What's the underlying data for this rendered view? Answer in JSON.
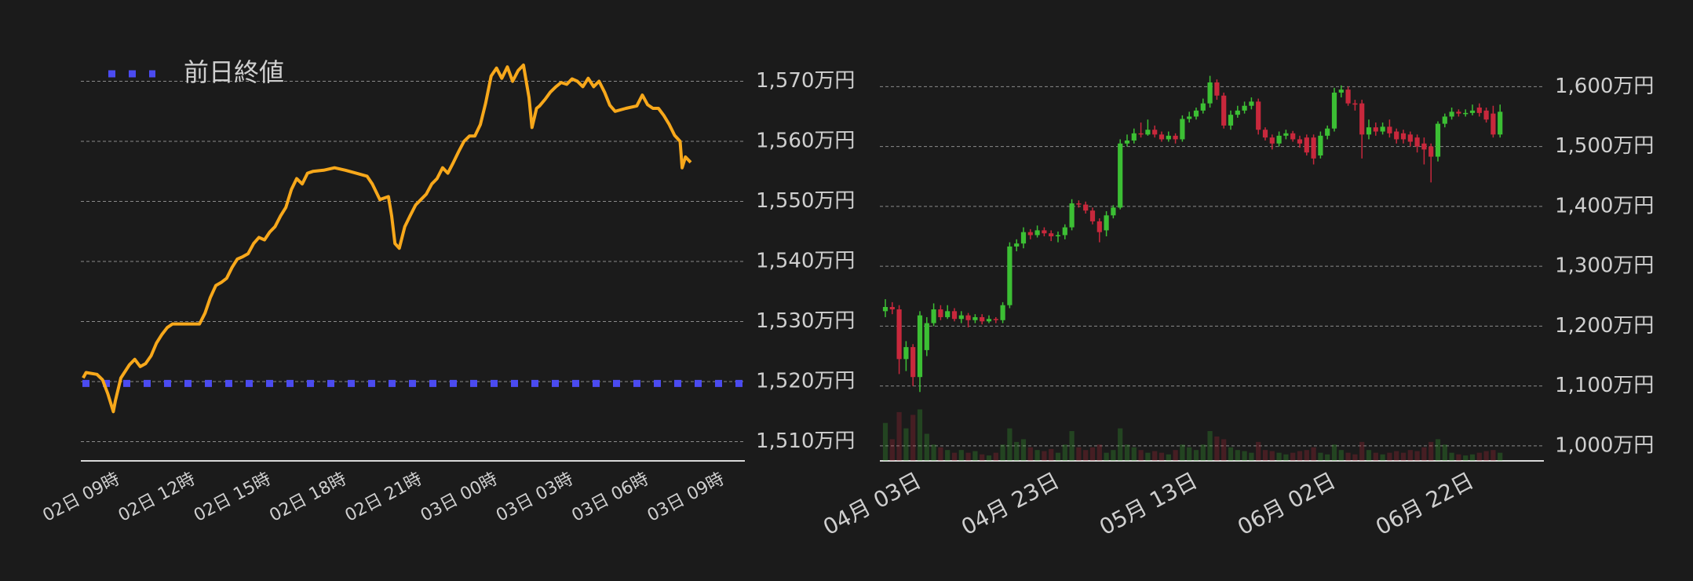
{
  "chart_data": [
    {
      "type": "line",
      "x": [
        7.59,
        7.71,
        8.14,
        8.36,
        8.57,
        8.79,
        8.87,
        9.09,
        9.43,
        9.64,
        9.86,
        10.07,
        10.29,
        10.5,
        10.71,
        10.93,
        11.14,
        12.21,
        12.43,
        12.64,
        12.86,
        13.07,
        13.29,
        13.5,
        13.71,
        13.93,
        14.14,
        14.36,
        14.57,
        14.79,
        15.0,
        15.21,
        15.43,
        15.64,
        15.86,
        16.07,
        16.29,
        16.5,
        16.71,
        17.14,
        17.57,
        18.0,
        18.43,
        18.86,
        19.07,
        19.37,
        19.71,
        19.84,
        19.97,
        20.14,
        20.36,
        20.57,
        20.79,
        21.0,
        21.21,
        21.43,
        21.64,
        21.86,
        22.07,
        22.29,
        22.5,
        22.71,
        22.93,
        23.14,
        23.36,
        23.57,
        23.79,
        24.0,
        24.21,
        24.43,
        24.64,
        24.86,
        25.07,
        25.29,
        25.41,
        25.59,
        25.71,
        25.93,
        26.14,
        26.36,
        26.57,
        26.79,
        27.0,
        27.21,
        27.43,
        27.64,
        27.86,
        28.07,
        28.29,
        28.5,
        28.71,
        29.14,
        29.57,
        29.79,
        30.0,
        30.21,
        30.43,
        30.64,
        30.86,
        31.07,
        31.29,
        31.37,
        31.5,
        31.71
      ],
      "values": [
        1520.6,
        1521.5,
        1521.2,
        1520.3,
        1518,
        1515,
        1516.8,
        1520.6,
        1522.8,
        1523.7,
        1522.5,
        1523,
        1524.3,
        1526.4,
        1527.8,
        1529,
        1529.6,
        1529.6,
        1531.4,
        1534,
        1536,
        1536.5,
        1537.2,
        1539,
        1540.4,
        1540.8,
        1541.3,
        1543,
        1544,
        1543.6,
        1544.9,
        1545.8,
        1547.6,
        1549,
        1552,
        1553.8,
        1552.9,
        1554.7,
        1555,
        1555.2,
        1555.6,
        1555.2,
        1554.7,
        1554.2,
        1552.9,
        1550.3,
        1550.8,
        1547.6,
        1543,
        1542.2,
        1545.8,
        1547.6,
        1549.4,
        1550.3,
        1551.2,
        1552.9,
        1553.8,
        1555.6,
        1554.7,
        1556.5,
        1558.3,
        1560,
        1560.9,
        1560.9,
        1562.8,
        1566.4,
        1570.9,
        1572.2,
        1570.5,
        1572.4,
        1570,
        1571.8,
        1572.7,
        1567.3,
        1562.3,
        1565.5,
        1565.9,
        1567,
        1568.2,
        1569.1,
        1569.8,
        1569.5,
        1570.4,
        1570,
        1569.1,
        1570.5,
        1569.1,
        1570,
        1568.2,
        1566,
        1565,
        1565.5,
        1565.9,
        1567.7,
        1566.1,
        1565.5,
        1565.5,
        1564.3,
        1562.8,
        1561,
        1560,
        1555.6,
        1557.4,
        1556.5
      ],
      "color": "#f7a81b",
      "reference": {
        "name": "前日終値",
        "value": 1519.7,
        "color": "#4b4bf0"
      },
      "xlim": [
        7.5,
        33.86
      ],
      "xticks": [
        {
          "value": 9,
          "label": "02日 09時"
        },
        {
          "value": 12,
          "label": "02日 12時"
        },
        {
          "value": 15,
          "label": "02日 15時"
        },
        {
          "value": 18,
          "label": "02日 18時"
        },
        {
          "value": 21,
          "label": "02日 21時"
        },
        {
          "value": 24,
          "label": "03日 00時"
        },
        {
          "value": 27,
          "label": "03日 03時"
        },
        {
          "value": 30,
          "label": "03日 06時"
        },
        {
          "value": 33,
          "label": "03日 09時"
        }
      ],
      "ylim": [
        1506.8,
        1573.6
      ],
      "yticks": [
        {
          "value": 1510,
          "label": "1,510万円"
        },
        {
          "value": 1520,
          "label": "1,520万円"
        },
        {
          "value": 1530,
          "label": "1,530万円"
        },
        {
          "value": 1540,
          "label": "1,540万円"
        },
        {
          "value": 1550,
          "label": "1,550万円"
        },
        {
          "value": 1560,
          "label": "1,560万円"
        },
        {
          "value": 1570,
          "label": "1,570万円"
        }
      ],
      "grid": true,
      "legend": "top-left"
    },
    {
      "type": "candlestick",
      "categories": [
        null,
        null,
        null,
        null,
        null,
        "04月 03日",
        null,
        null,
        null,
        null,
        null,
        null,
        null,
        null,
        null,
        null,
        null,
        null,
        null,
        null,
        null,
        null,
        null,
        null,
        null,
        "04月 23日",
        null,
        null,
        null,
        null,
        null,
        null,
        null,
        null,
        null,
        null,
        null,
        null,
        null,
        null,
        null,
        null,
        null,
        null,
        null,
        "05月 13日",
        null,
        null,
        null,
        null,
        null,
        null,
        null,
        null,
        null,
        null,
        null,
        null,
        null,
        null,
        null,
        null,
        null,
        null,
        null,
        "06月 02日",
        null,
        null,
        null,
        null,
        null,
        null,
        null,
        null,
        null,
        null,
        null,
        null,
        null,
        null,
        null,
        null,
        null,
        null,
        null,
        "06月 22日",
        null,
        null,
        null,
        null
      ],
      "open": [
        1225,
        1232,
        1228,
        1145,
        1165,
        1115,
        1160,
        1205,
        1228,
        1215,
        1225,
        1212,
        1218,
        1210,
        1215,
        1208,
        1212,
        1210,
        1235,
        1333,
        1338,
        1357,
        1352,
        1360,
        1355,
        1350,
        1352,
        1365,
        1405,
        1403,
        1393,
        1375,
        1360,
        1385,
        1398,
        1505,
        1510,
        1522,
        1520,
        1528,
        1520,
        1512,
        1518,
        1512,
        1546,
        1550,
        1560,
        1572,
        1607,
        1585,
        1535,
        1553,
        1560,
        1568,
        1575,
        1528,
        1515,
        1505,
        1518,
        1522,
        1512,
        1515,
        1515,
        1485,
        1518,
        1530,
        1590,
        1595,
        1572,
        1572,
        1520,
        1532,
        1525,
        1533,
        1525,
        1522,
        1520,
        1515,
        1505,
        1500,
        1483,
        1538,
        1550,
        1558,
        1555,
        1556,
        1565,
        1560,
        1555,
        1520
      ],
      "high": [
        1245,
        1240,
        1235,
        1175,
        1170,
        1225,
        1215,
        1238,
        1235,
        1235,
        1230,
        1225,
        1222,
        1220,
        1220,
        1218,
        1215,
        1240,
        1340,
        1345,
        1365,
        1362,
        1368,
        1365,
        1360,
        1358,
        1370,
        1412,
        1410,
        1408,
        1398,
        1380,
        1392,
        1402,
        1512,
        1520,
        1530,
        1540,
        1545,
        1535,
        1525,
        1525,
        1522,
        1552,
        1558,
        1565,
        1580,
        1618,
        1612,
        1590,
        1560,
        1568,
        1575,
        1582,
        1580,
        1532,
        1520,
        1525,
        1528,
        1526,
        1518,
        1520,
        1520,
        1525,
        1535,
        1598,
        1602,
        1600,
        1578,
        1578,
        1545,
        1540,
        1540,
        1545,
        1530,
        1528,
        1525,
        1520,
        1515,
        1505,
        1542,
        1555,
        1565,
        1562,
        1562,
        1570,
        1572,
        1565,
        1568,
        1570
      ],
      "low": [
        1215,
        1220,
        1120,
        1125,
        1100,
        1090,
        1150,
        1200,
        1210,
        1212,
        1208,
        1205,
        1198,
        1205,
        1203,
        1205,
        1205,
        1205,
        1230,
        1325,
        1330,
        1345,
        1348,
        1350,
        1342,
        1340,
        1345,
        1360,
        1398,
        1388,
        1370,
        1340,
        1350,
        1380,
        1395,
        1500,
        1505,
        1515,
        1518,
        1515,
        1508,
        1508,
        1505,
        1508,
        1540,
        1545,
        1555,
        1565,
        1578,
        1530,
        1528,
        1548,
        1555,
        1562,
        1520,
        1510,
        1495,
        1500,
        1512,
        1508,
        1498,
        1485,
        1470,
        1480,
        1512,
        1525,
        1582,
        1568,
        1560,
        1480,
        1512,
        1518,
        1520,
        1515,
        1505,
        1505,
        1500,
        1490,
        1470,
        1440,
        1475,
        1532,
        1545,
        1550,
        1550,
        1552,
        1550,
        1540,
        1515,
        1515
      ],
      "close": [
        1232,
        1228,
        1145,
        1165,
        1115,
        1218,
        1205,
        1228,
        1215,
        1225,
        1212,
        1218,
        1210,
        1215,
        1208,
        1212,
        1210,
        1235,
        1333,
        1338,
        1357,
        1352,
        1360,
        1355,
        1350,
        1352,
        1365,
        1405,
        1403,
        1393,
        1375,
        1357,
        1385,
        1398,
        1505,
        1510,
        1522,
        1520,
        1528,
        1520,
        1512,
        1518,
        1512,
        1546,
        1550,
        1560,
        1572,
        1607,
        1585,
        1535,
        1553,
        1560,
        1568,
        1575,
        1528,
        1515,
        1505,
        1518,
        1522,
        1512,
        1505,
        1490,
        1480,
        1518,
        1530,
        1590,
        1595,
        1572,
        1570,
        1520,
        1532,
        1525,
        1533,
        1522,
        1512,
        1512,
        1508,
        1500,
        1495,
        1483,
        1538,
        1550,
        1558,
        1555,
        1556,
        1560,
        1556,
        1545,
        1520,
        1558
      ],
      "volume": [
        70,
        40,
        90,
        60,
        85,
        95,
        50,
        30,
        25,
        20,
        15,
        20,
        15,
        18,
        12,
        10,
        15,
        30,
        60,
        35,
        40,
        25,
        20,
        18,
        22,
        15,
        30,
        55,
        25,
        20,
        25,
        30,
        15,
        20,
        60,
        30,
        25,
        20,
        15,
        18,
        15,
        12,
        20,
        30,
        25,
        20,
        30,
        55,
        45,
        40,
        25,
        20,
        18,
        15,
        35,
        20,
        18,
        15,
        12,
        15,
        18,
        20,
        25,
        15,
        12,
        30,
        20,
        15,
        12,
        35,
        20,
        15,
        12,
        15,
        18,
        15,
        20,
        18,
        25,
        35,
        40,
        30,
        15,
        12,
        10,
        12,
        15,
        18,
        20,
        15
      ],
      "volume_lim": [
        0,
        100
      ],
      "up_color": "#3cbf34",
      "down_color": "#c8283c",
      "ylim": [
        975,
        1645
      ],
      "yticks": [
        {
          "value": 1000,
          "label": "1,000万円"
        },
        {
          "value": 1100,
          "label": "1,100万円"
        },
        {
          "value": 1200,
          "label": "1,200万円"
        },
        {
          "value": 1300,
          "label": "1,300万円"
        },
        {
          "value": 1400,
          "label": "1,400万円"
        },
        {
          "value": 1500,
          "label": "1,500万円"
        },
        {
          "value": 1600,
          "label": "1,600万円"
        }
      ],
      "grid": true
    }
  ]
}
